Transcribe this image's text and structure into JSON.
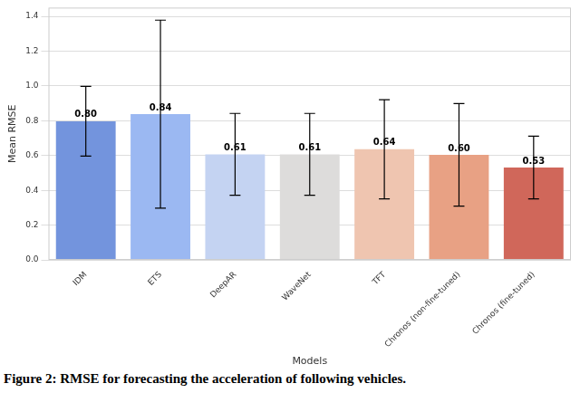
{
  "chart_data": {
    "type": "bar",
    "caption": "Figure 2: RMSE for forecasting the acceleration of following vehicles.",
    "x_label": "Models",
    "y_label": "Mean RMSE",
    "categories": [
      "IDM",
      "ETS",
      "DeepAR",
      "WaveNet",
      "TFT",
      "Chronos (non-fine-tuned)",
      "Chronos (fine-tuned)"
    ],
    "values": [
      0.797,
      0.838,
      0.607,
      0.607,
      0.636,
      0.604,
      0.531
    ],
    "value_labels": [
      "0.80",
      "0.84",
      "0.61",
      "0.61",
      "0.64",
      "0.60",
      "0.53"
    ],
    "errors": [
      0.2,
      0.54,
      0.235,
      0.235,
      0.285,
      0.295,
      0.18
    ],
    "colors": [
      "#7394dd",
      "#9bb8f2",
      "#c4d3f2",
      "#dddcdb",
      "#efc5b0",
      "#e8a184",
      "#d0675a"
    ],
    "ylim": [
      0,
      1.45
    ],
    "yticks": [
      {
        "value": 0,
        "label": "0.0"
      },
      0.2,
      0.4,
      0.6,
      0.8,
      {
        "value": 1,
        "label": "1.0"
      },
      1.2,
      1.4
    ],
    "grid": true,
    "data_labels": true
  }
}
